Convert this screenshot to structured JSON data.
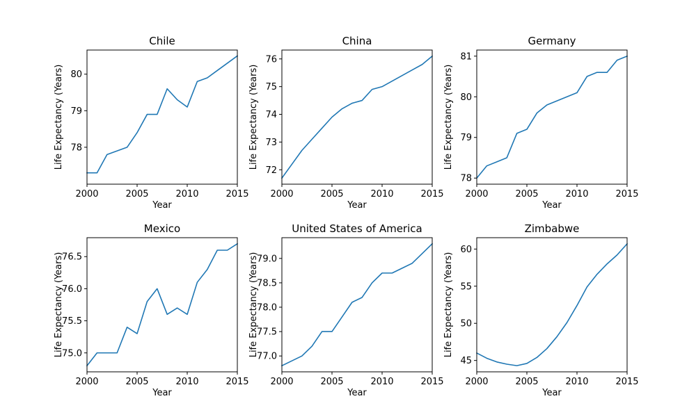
{
  "chart_data": [
    {
      "type": "line",
      "title": "Chile",
      "xlabel": "Year",
      "ylabel": "Life Expectancy (Years)",
      "x": [
        2000,
        2001,
        2002,
        2003,
        2004,
        2005,
        2006,
        2007,
        2008,
        2009,
        2010,
        2011,
        2012,
        2013,
        2014,
        2015
      ],
      "values": [
        77.3,
        77.3,
        77.8,
        77.9,
        78.0,
        78.4,
        78.9,
        78.9,
        79.6,
        79.3,
        79.1,
        79.8,
        79.9,
        80.1,
        80.3,
        80.5
      ],
      "xlim": [
        2000,
        2015
      ],
      "ylim": [
        76.99,
        80.66
      ],
      "xticks": [
        2000,
        2005,
        2010,
        2015
      ],
      "yticks": [
        78,
        79,
        80
      ],
      "ytick_labels": [
        "78",
        "79",
        "80"
      ],
      "grid": false
    },
    {
      "type": "line",
      "title": "China",
      "xlabel": "Year",
      "ylabel": "Life Expectancy (Years)",
      "x": [
        2000,
        2001,
        2002,
        2003,
        2004,
        2005,
        2006,
        2007,
        2008,
        2009,
        2010,
        2011,
        2012,
        2013,
        2014,
        2015
      ],
      "values": [
        71.7,
        72.2,
        72.7,
        73.1,
        73.5,
        73.9,
        74.2,
        74.4,
        74.5,
        74.9,
        75.0,
        75.2,
        75.4,
        75.6,
        75.8,
        76.1
      ],
      "xlim": [
        2000,
        2015
      ],
      "ylim": [
        71.48,
        76.32
      ],
      "xticks": [
        2000,
        2005,
        2010,
        2015
      ],
      "yticks": [
        72,
        73,
        74,
        75,
        76
      ],
      "ytick_labels": [
        "72",
        "73",
        "74",
        "75",
        "76"
      ],
      "grid": false
    },
    {
      "type": "line",
      "title": "Germany",
      "xlabel": "Year",
      "ylabel": "Life Expectancy (Years)",
      "x": [
        2000,
        2001,
        2002,
        2003,
        2004,
        2005,
        2006,
        2007,
        2008,
        2009,
        2010,
        2011,
        2012,
        2013,
        2014,
        2015
      ],
      "values": [
        78.0,
        78.3,
        78.4,
        78.5,
        79.1,
        79.2,
        79.6,
        79.8,
        79.9,
        80.0,
        80.1,
        80.5,
        80.6,
        80.6,
        80.9,
        81.0
      ],
      "xlim": [
        2000,
        2015
      ],
      "ylim": [
        77.85,
        81.15
      ],
      "xticks": [
        2000,
        2005,
        2010,
        2015
      ],
      "yticks": [
        78,
        79,
        80,
        81
      ],
      "ytick_labels": [
        "78",
        "79",
        "80",
        "81"
      ],
      "grid": false
    },
    {
      "type": "line",
      "title": "Mexico",
      "xlabel": "Year",
      "ylabel": "Life Expectancy (Years)",
      "x": [
        2000,
        2001,
        2002,
        2003,
        2004,
        2005,
        2006,
        2007,
        2008,
        2009,
        2010,
        2011,
        2012,
        2013,
        2014,
        2015
      ],
      "values": [
        74.8,
        75.0,
        75.0,
        75.0,
        75.4,
        75.3,
        75.8,
        76.0,
        75.6,
        75.7,
        75.6,
        76.1,
        76.3,
        76.6,
        76.6,
        76.7
      ],
      "xlim": [
        2000,
        2015
      ],
      "ylim": [
        74.705,
        76.795
      ],
      "xticks": [
        2000,
        2005,
        2010,
        2015
      ],
      "yticks": [
        75.0,
        75.5,
        76.0,
        76.5
      ],
      "ytick_labels": [
        "75.0",
        "75.5",
        "76.0",
        "76.5"
      ],
      "grid": false
    },
    {
      "type": "line",
      "title": "United States of America",
      "xlabel": "Year",
      "ylabel": "Life Expectancy (Years)",
      "x": [
        2000,
        2001,
        2002,
        2003,
        2004,
        2005,
        2006,
        2007,
        2008,
        2009,
        2010,
        2011,
        2012,
        2013,
        2014,
        2015
      ],
      "values": [
        76.8,
        76.9,
        77.0,
        77.2,
        77.5,
        77.5,
        77.8,
        78.1,
        78.2,
        78.5,
        78.7,
        78.7,
        78.8,
        78.9,
        79.1,
        79.3
      ],
      "xlim": [
        2000,
        2015
      ],
      "ylim": [
        76.675,
        79.425
      ],
      "xticks": [
        2000,
        2005,
        2010,
        2015
      ],
      "yticks": [
        77.0,
        77.5,
        78.0,
        78.5,
        79.0
      ],
      "ytick_labels": [
        "77.0",
        "77.5",
        "78.0",
        "78.5",
        "79.0"
      ],
      "grid": false
    },
    {
      "type": "line",
      "title": "Zimbabwe",
      "xlabel": "Year",
      "ylabel": "Life Expectancy (Years)",
      "x": [
        2000,
        2001,
        2002,
        2003,
        2004,
        2005,
        2006,
        2007,
        2008,
        2009,
        2010,
        2011,
        2012,
        2013,
        2014,
        2015
      ],
      "values": [
        46.0,
        45.3,
        44.8,
        44.5,
        44.3,
        44.6,
        45.4,
        46.6,
        48.2,
        50.1,
        52.4,
        54.9,
        56.6,
        58.0,
        59.2,
        60.7
      ],
      "xlim": [
        2000,
        2015
      ],
      "ylim": [
        43.47,
        61.53
      ],
      "xticks": [
        2000,
        2005,
        2010,
        2015
      ],
      "yticks": [
        45,
        50,
        55,
        60
      ],
      "ytick_labels": [
        "45",
        "50",
        "55",
        "60"
      ],
      "grid": false
    }
  ]
}
